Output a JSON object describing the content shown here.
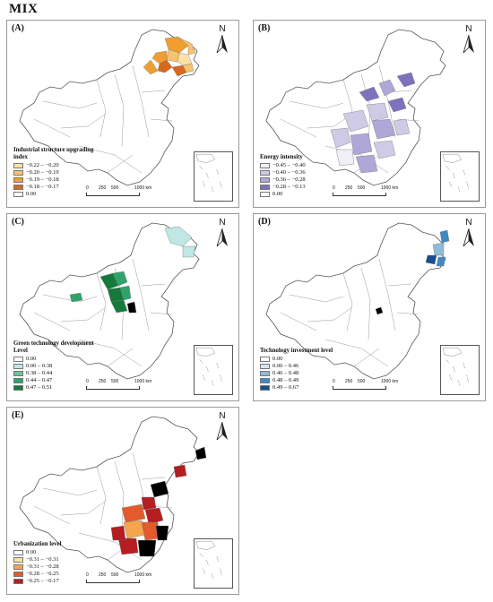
{
  "figure": {
    "title": "MIX"
  },
  "colors": {
    "boundary": "#9a9a9a",
    "orange": [
      "#fbe1a8",
      "#f8c36c",
      "#ef9e2f",
      "#d7691c"
    ],
    "purple": [
      "#f0eef6",
      "#cfcbe6",
      "#aea7d8",
      "#7d72bd"
    ],
    "green": [
      "#bfe7e3",
      "#6cc49d",
      "#2ea46b",
      "#137a3c"
    ],
    "blue": [
      "#d5e6f1",
      "#8fbbd9",
      "#3f8ac2",
      "#174f8f"
    ],
    "red": [
      "#fde2a0",
      "#f5a54b",
      "#e35a2b",
      "#b51d20"
    ]
  },
  "panels": [
    {
      "id": "A",
      "label": "(A)",
      "legend_title": "Industrial structure upgrading index",
      "legend": [
        "−0.22 – −0.20",
        "−0.20 – −0.19",
        "−0.19 – −0.18",
        "−0.18 – −0.17",
        "0.00"
      ],
      "scheme": "orange"
    },
    {
      "id": "B",
      "label": "(B)",
      "legend_title": "Energy intensity",
      "legend": [
        "−0.45 – −0.40",
        "−0.40 – −0.36",
        "−0.36 – −0.28",
        "−0.28 – −0.13",
        "0.00"
      ],
      "scheme": "purple"
    },
    {
      "id": "C",
      "label": "(C)",
      "legend_title": "Green technology development Level",
      "legend": [
        "0.00",
        "0.00 – 0.38",
        "0.38 – 0.44",
        "0.44 – 0.47",
        "0.47 – 0.51"
      ],
      "scheme": "green"
    },
    {
      "id": "D",
      "label": "(D)",
      "legend_title": "Technology investment level",
      "legend": [
        "0.00",
        "0.00 – 0.46",
        "0.46 – 0.48",
        "0.48 – 0.49",
        "0.49 – 0.67"
      ],
      "scheme": "blue"
    },
    {
      "id": "E",
      "label": "(E)",
      "legend_title": "Urbanization level",
      "legend": [
        "0.00",
        "−0.31 – −0.31",
        "−0.31 – −0.28",
        "−0.28 – −0.25",
        "−0.25 – −0.17"
      ],
      "scheme": "red"
    }
  ],
  "north_label": "N",
  "scale_labels": [
    "0",
    "250",
    "500",
    "1000 km"
  ]
}
